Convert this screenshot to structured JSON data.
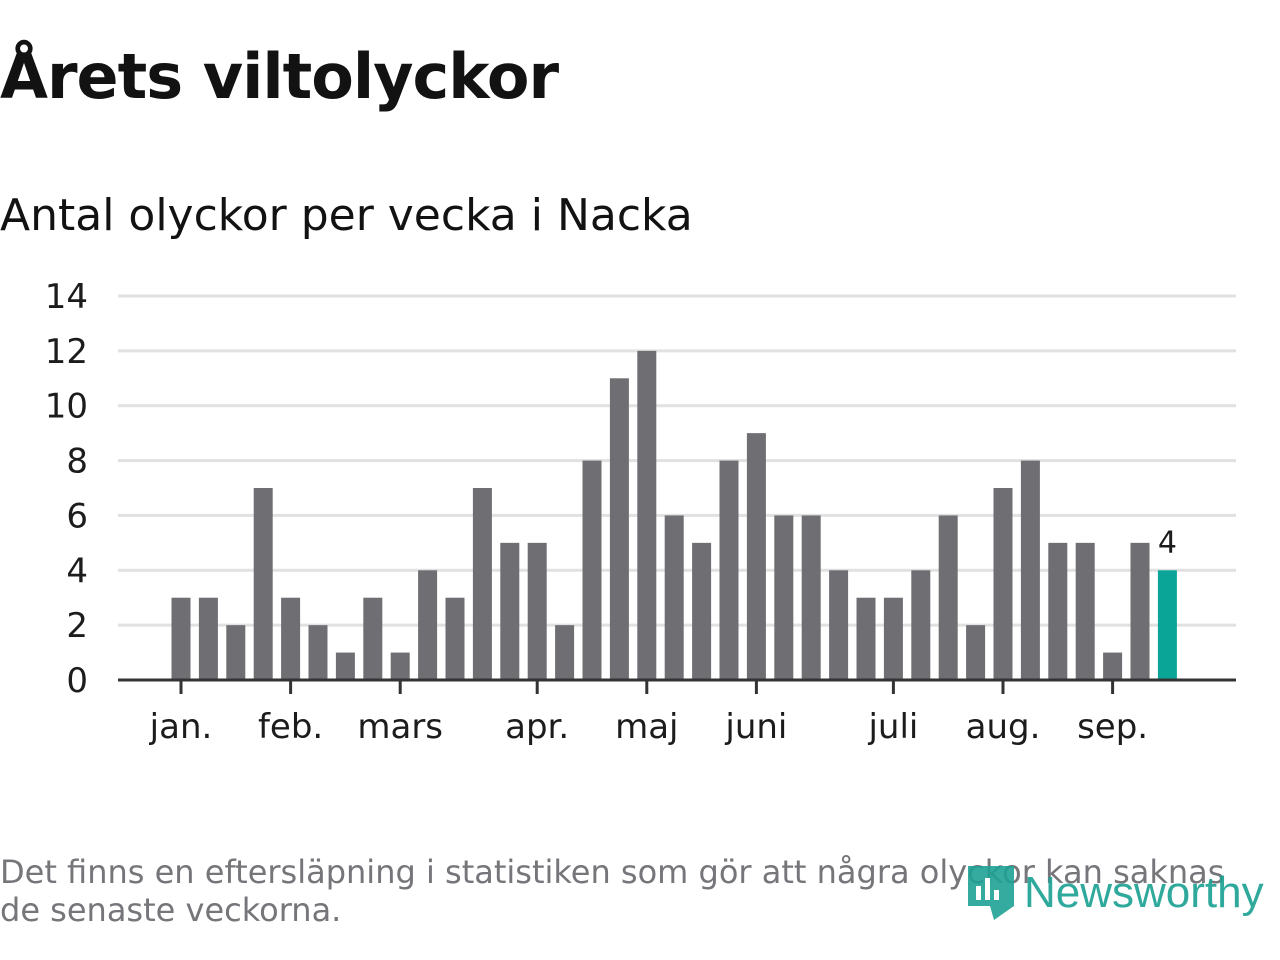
{
  "header": {
    "title": "Årets viltolyckor",
    "subtitle": "Antal olyckor per vecka i Nacka"
  },
  "chart_data": {
    "type": "bar",
    "xlabel": "",
    "ylabel": "",
    "ylim": [
      0,
      14
    ],
    "yticks": [
      0,
      2,
      4,
      6,
      8,
      10,
      12,
      14
    ],
    "grid": true,
    "values": [
      3,
      3,
      2,
      7,
      3,
      2,
      1,
      3,
      1,
      4,
      3,
      7,
      5,
      5,
      2,
      8,
      11,
      12,
      6,
      5,
      8,
      9,
      6,
      6,
      4,
      3,
      3,
      4,
      6,
      2,
      7,
      8,
      5,
      5,
      1,
      5,
      4
    ],
    "month_ticks": [
      {
        "label": "jan.",
        "week_index": 0
      },
      {
        "label": "feb.",
        "week_index": 4
      },
      {
        "label": "mars",
        "week_index": 8
      },
      {
        "label": "apr.",
        "week_index": 13
      },
      {
        "label": "maj",
        "week_index": 17
      },
      {
        "label": "juni",
        "week_index": 21
      },
      {
        "label": "juli",
        "week_index": 26
      },
      {
        "label": "aug.",
        "week_index": 30
      },
      {
        "label": "sep.",
        "week_index": 34
      }
    ],
    "highlight_last": true,
    "highlight_label": "4",
    "colors": {
      "bar": "#6f6e73",
      "highlight": "#0aa596",
      "grid": "#e1e1e1",
      "axis": "#333333"
    }
  },
  "footer": {
    "note": "Det finns en eftersläpning i statistiken som gör att några olyckor kan saknas de senaste veckorna.",
    "brand": "Newsworthy"
  }
}
